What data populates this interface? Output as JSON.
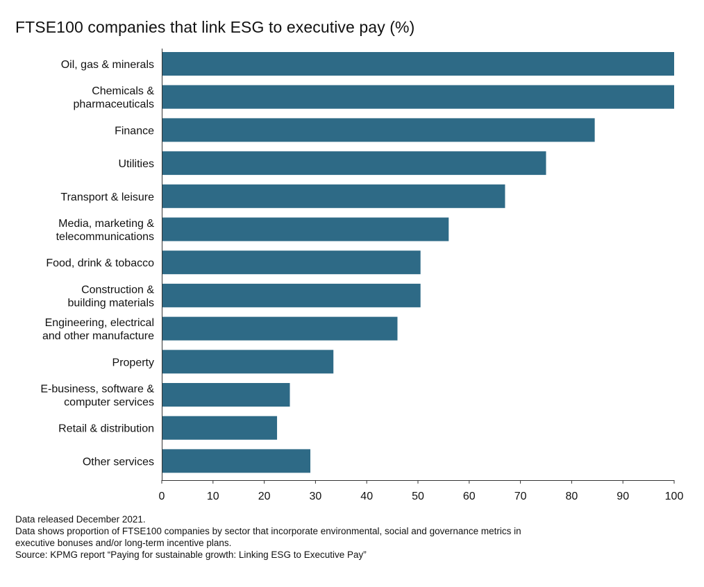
{
  "chart_data": {
    "type": "bar",
    "orientation": "horizontal",
    "title": "FTSE100 companies that link ESG to executive pay (%)",
    "categories": [
      [
        "Oil, gas & minerals"
      ],
      [
        "Chemicals &",
        "pharmaceuticals"
      ],
      [
        "Finance"
      ],
      [
        "Utilities"
      ],
      [
        "Transport & leisure"
      ],
      [
        "Media, marketing &",
        "telecommunications"
      ],
      [
        "Food, drink & tobacco"
      ],
      [
        "Construction &",
        "building materials"
      ],
      [
        "Engineering, electrical",
        "and other manufacture"
      ],
      [
        "Property"
      ],
      [
        "E-business, software &",
        "computer services"
      ],
      [
        "Retail & distribution"
      ],
      [
        "Other services"
      ]
    ],
    "values": [
      100,
      100,
      84.5,
      75,
      67,
      56,
      50.5,
      50.5,
      46,
      33.5,
      25,
      22.5,
      29
    ],
    "xlim": [
      0,
      100
    ],
    "xticks": [
      0,
      10,
      20,
      30,
      40,
      50,
      60,
      70,
      80,
      90,
      100
    ],
    "grid": false,
    "bar_color": "#2e6a86"
  },
  "notes": [
    "Data released December 2021.",
    "Data shows proportion of FTSE100 companies by sector that incorporate environmental, social and governance metrics in",
    "executive bonuses and/or long-term incentive plans.",
    "Source: KPMG report “Paying for sustainable growth: Linking ESG to Executive Pay”"
  ]
}
